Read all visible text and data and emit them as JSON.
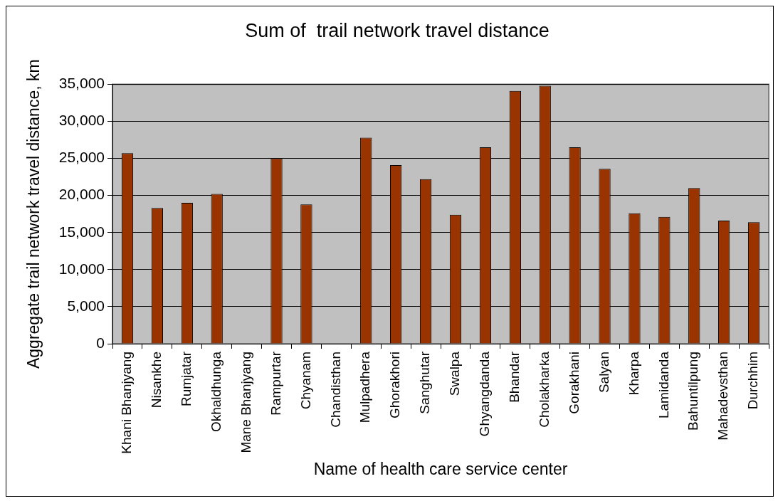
{
  "chart_data": {
    "type": "bar",
    "title": "Sum of  trail network travel distance",
    "xlabel": "Name of health care service center",
    "ylabel": "Aggregate trail network travel distance, km",
    "categories": [
      "Khani Bhanjyang",
      "Nisankhe",
      "Rumjatar",
      "Okhaldhunga",
      "Mane Bhanjyang",
      "Rampurtar",
      "Chyanam",
      "Chandisthan",
      "Mulpadhera",
      "Ghorakhori",
      "Sanghutar",
      "Swalpa",
      "Ghyangdanda",
      "Bhandar",
      "Cholakharka",
      "Gorakhani",
      "Salyan",
      "Kharpa",
      "Lamidanda",
      "Bahuntilpung",
      "Mahadevsthan",
      "Durchhim"
    ],
    "values": [
      25700,
      18300,
      19000,
      20200,
      null,
      25000,
      18800,
      null,
      27800,
      24100,
      22200,
      17400,
      26500,
      34100,
      34800,
      26500,
      23600,
      17600,
      17100,
      21000,
      16600,
      16400
    ],
    "color": "#993300",
    "ylim": [
      0,
      35000
    ],
    "yticks": [
      {
        "value": 0,
        "label": "0"
      },
      {
        "value": 5000,
        "label": "5,000"
      },
      {
        "value": 10000,
        "label": "10,000"
      },
      {
        "value": 15000,
        "label": "15,000"
      },
      {
        "value": 20000,
        "label": "20,000"
      },
      {
        "value": 25000,
        "label": "25,000"
      },
      {
        "value": 30000,
        "label": "30,000"
      },
      {
        "value": 35000,
        "label": "35,000"
      }
    ],
    "grid": "y"
  }
}
